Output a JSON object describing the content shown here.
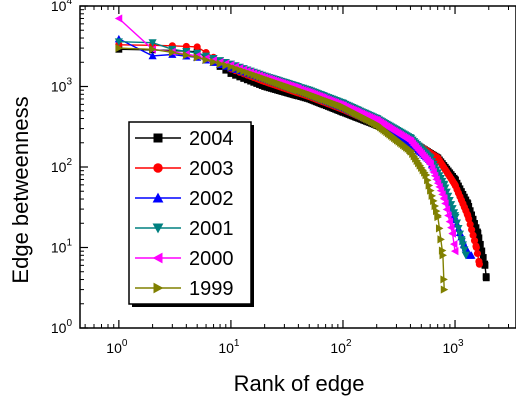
{
  "chart_data": {
    "type": "scatter",
    "title": "",
    "xlabel": "Rank of edge",
    "ylabel": "Edge betweenness",
    "xscale": "log",
    "yscale": "log",
    "xlim": [
      0.45,
      3500
    ],
    "ylim": [
      1,
      10000
    ],
    "x_ticks": [
      {
        "base": "10",
        "exp": "0",
        "value": 1
      },
      {
        "base": "10",
        "exp": "1",
        "value": 10
      },
      {
        "base": "10",
        "exp": "2",
        "value": 100
      },
      {
        "base": "10",
        "exp": "3",
        "value": 1000
      }
    ],
    "y_ticks": [
      {
        "base": "10",
        "exp": "0",
        "value": 1
      },
      {
        "base": "10",
        "exp": "1",
        "value": 10
      },
      {
        "base": "10",
        "exp": "2",
        "value": 100
      },
      {
        "base": "10",
        "exp": "3",
        "value": 1000
      },
      {
        "base": "10",
        "exp": "4",
        "value": 10000
      }
    ],
    "legend_position": "left-center",
    "series": [
      {
        "name": "2004",
        "color": "#000000",
        "marker": "square",
        "x": [
          1,
          2,
          3,
          5,
          7,
          10,
          20,
          50,
          100,
          200,
          400,
          700,
          1000,
          1300,
          1600,
          1850,
          1900
        ],
        "y": [
          2900,
          2850,
          2800,
          2700,
          2000,
          1450,
          1000,
          700,
          480,
          330,
          210,
          130,
          70,
          35,
          15,
          6,
          4.2
        ]
      },
      {
        "name": "2003",
        "color": "#ff0000",
        "marker": "circle",
        "x": [
          1,
          2,
          3,
          4,
          5,
          7,
          10,
          20,
          50,
          100,
          200,
          400,
          700,
          1000,
          1300,
          1550,
          1650
        ],
        "y": [
          3300,
          3250,
          3200,
          3150,
          3100,
          2300,
          1650,
          1150,
          750,
          520,
          340,
          215,
          130,
          60,
          25,
          10,
          6.2
        ]
      },
      {
        "name": "2002",
        "color": "#0000ff",
        "marker": "triangle-up",
        "x": [
          1,
          2,
          3,
          5,
          10,
          20,
          50,
          100,
          200,
          400,
          600,
          800,
          1000,
          1200,
          1350,
          1400
        ],
        "y": [
          3900,
          2400,
          2500,
          2300,
          1700,
          1250,
          800,
          550,
          350,
          200,
          120,
          55,
          23,
          11,
          8,
          8
        ]
      },
      {
        "name": "2001",
        "color": "#008080",
        "marker": "triangle-down",
        "x": [
          1,
          2,
          3,
          5,
          10,
          20,
          50,
          100,
          200,
          400,
          600,
          800,
          1000,
          1150,
          1250
        ],
        "y": [
          3600,
          3500,
          2900,
          2600,
          1900,
          1350,
          900,
          620,
          400,
          230,
          130,
          60,
          25,
          12,
          8
        ]
      },
      {
        "name": "2000",
        "color": "#ff00ff",
        "marker": "triangle-left",
        "x": [
          1,
          2,
          3,
          5,
          10,
          20,
          50,
          100,
          200,
          400,
          600,
          800,
          950,
          1000
        ],
        "y": [
          7000,
          2900,
          2700,
          2400,
          1850,
          1300,
          850,
          580,
          380,
          210,
          110,
          40,
          15,
          9
        ]
      },
      {
        "name": "1999",
        "color": "#808000",
        "marker": "triangle-right",
        "x": [
          1,
          2,
          3,
          5,
          10,
          20,
          50,
          100,
          200,
          400,
          550,
          700,
          780,
          800
        ],
        "y": [
          3000,
          2900,
          2650,
          2300,
          1750,
          1250,
          800,
          560,
          340,
          160,
          80,
          25,
          8,
          3
        ]
      }
    ]
  }
}
